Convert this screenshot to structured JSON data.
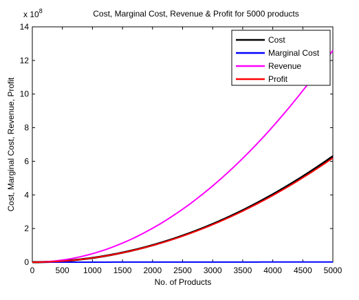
{
  "chart_data": {
    "type": "line",
    "title": "Cost, Marginal Cost, Revenue & Profit for 5000 products",
    "xlabel": "No. of Products",
    "ylabel": "Cost, Marginal Cost, Revenue, Profit",
    "xlim": [
      0,
      5000
    ],
    "ylim": [
      0,
      1400000000
    ],
    "y_exponent_label": "x 10",
    "y_exponent_power": "8",
    "x_ticks": [
      "0",
      "500",
      "1000",
      "1500",
      "2000",
      "2500",
      "3000",
      "3500",
      "4000",
      "4500",
      "5000"
    ],
    "y_ticks": [
      "0",
      "2",
      "4",
      "6",
      "8",
      "10",
      "12",
      "14"
    ],
    "legend_position": "top-right",
    "x": [
      0,
      500,
      1000,
      1500,
      2000,
      2500,
      3000,
      3500,
      4000,
      4500,
      5000
    ],
    "series": [
      {
        "name": "Cost",
        "color": "#000000",
        "values": [
          0,
          6300000,
          25200000,
          56700000,
          100800000,
          157500000,
          226800000,
          308700000,
          403200000,
          510300000,
          630000000
        ]
      },
      {
        "name": "Marginal Cost",
        "color": "#0000ff",
        "values": [
          0,
          100000,
          200000,
          300000,
          400000,
          500000,
          600000,
          700000,
          800000,
          900000,
          1000000
        ]
      },
      {
        "name": "Revenue",
        "color": "#ff00ff",
        "values": [
          0,
          12600000,
          50400000,
          113400000,
          201600000,
          315000000,
          453600000,
          617400000,
          806400000,
          1020600000,
          1260000000
        ]
      },
      {
        "name": "Profit",
        "color": "#ff0000",
        "values": [
          0,
          6200000,
          24800000,
          55800000,
          99200000,
          155000000,
          223200000,
          303800000,
          396800000,
          502200000,
          620000000
        ]
      }
    ]
  }
}
